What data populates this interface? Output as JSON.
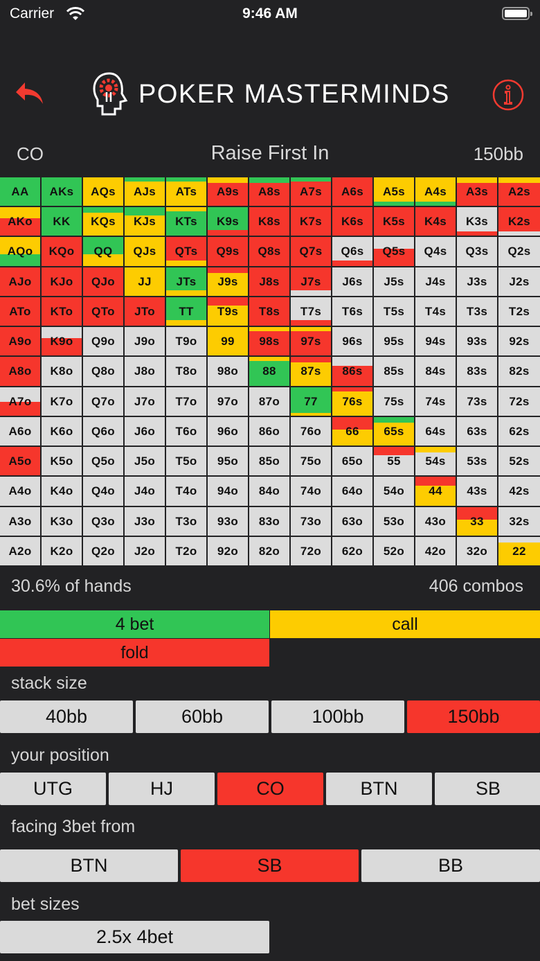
{
  "status": {
    "carrier": "Carrier",
    "time": "9:46 AM"
  },
  "header": {
    "title": "POKER MASTERMINDS"
  },
  "subheader": {
    "position": "CO",
    "title": "Raise First In",
    "stack": "150bb"
  },
  "colors": {
    "green": "#31c555",
    "yellow": "#fdcc01",
    "red": "#f6362c",
    "gray": "#dcdcdc"
  },
  "grid": {
    "rows": [
      [
        "AA",
        "AKs",
        "AQs",
        "AJs",
        "ATs",
        "A9s",
        "A8s",
        "A7s",
        "A6s",
        "A5s",
        "A4s",
        "A3s",
        "A2s"
      ],
      [
        "AKo",
        "KK",
        "KQs",
        "KJs",
        "KTs",
        "K9s",
        "K8s",
        "K7s",
        "K6s",
        "K5s",
        "K4s",
        "K3s",
        "K2s"
      ],
      [
        "AQo",
        "KQo",
        "QQ",
        "QJs",
        "QTs",
        "Q9s",
        "Q8s",
        "Q7s",
        "Q6s",
        "Q5s",
        "Q4s",
        "Q3s",
        "Q2s"
      ],
      [
        "AJo",
        "KJo",
        "QJo",
        "JJ",
        "JTs",
        "J9s",
        "J8s",
        "J7s",
        "J6s",
        "J5s",
        "J4s",
        "J3s",
        "J2s"
      ],
      [
        "ATo",
        "KTo",
        "QTo",
        "JTo",
        "TT",
        "T9s",
        "T8s",
        "T7s",
        "T6s",
        "T5s",
        "T4s",
        "T3s",
        "T2s"
      ],
      [
        "A9o",
        "K9o",
        "Q9o",
        "J9o",
        "T9o",
        "99",
        "98s",
        "97s",
        "96s",
        "95s",
        "94s",
        "93s",
        "92s"
      ],
      [
        "A8o",
        "K8o",
        "Q8o",
        "J8o",
        "T8o",
        "98o",
        "88",
        "87s",
        "86s",
        "85s",
        "84s",
        "83s",
        "82s"
      ],
      [
        "A7o",
        "K7o",
        "Q7o",
        "J7o",
        "T7o",
        "97o",
        "87o",
        "77",
        "76s",
        "75s",
        "74s",
        "73s",
        "72s"
      ],
      [
        "A6o",
        "K6o",
        "Q6o",
        "J6o",
        "T6o",
        "96o",
        "86o",
        "76o",
        "66",
        "65s",
        "64s",
        "63s",
        "62s"
      ],
      [
        "A5o",
        "K5o",
        "Q5o",
        "J5o",
        "T5o",
        "95o",
        "85o",
        "75o",
        "65o",
        "55",
        "54s",
        "53s",
        "52s"
      ],
      [
        "A4o",
        "K4o",
        "Q4o",
        "J4o",
        "T4o",
        "94o",
        "84o",
        "74o",
        "64o",
        "54o",
        "44",
        "43s",
        "42s"
      ],
      [
        "A3o",
        "K3o",
        "Q3o",
        "J3o",
        "T3o",
        "93o",
        "83o",
        "73o",
        "63o",
        "53o",
        "43o",
        "33",
        "32s"
      ],
      [
        "A2o",
        "K2o",
        "Q2o",
        "J2o",
        "T2o",
        "92o",
        "82o",
        "72o",
        "62o",
        "52o",
        "42o",
        "32o",
        "22"
      ]
    ],
    "mix": [
      [
        "g",
        "g",
        "y",
        "y.15g",
        "y.15g",
        "r.2y",
        "r.2g",
        "r.15g",
        "r",
        "g.85y",
        "g.85y",
        "r.2y",
        "r.2y"
      ],
      [
        "r.4y",
        "g",
        "y.2g",
        "y.3g",
        "g.15y",
        "r.8g",
        "r",
        "r",
        "r",
        "r",
        "r",
        "r.85x",
        "x.85r"
      ],
      [
        "g.6y",
        "r",
        "y.6g",
        "y",
        "y.8r",
        "r",
        "r",
        "r",
        "r.8x",
        "r.4x",
        "x",
        "x",
        "x"
      ],
      [
        "r",
        "r",
        "r",
        "y",
        "y.8g",
        "y.2r",
        "r",
        "x.8r",
        "x",
        "x",
        "x",
        "x",
        "x"
      ],
      [
        "r",
        "r",
        "r",
        "r",
        "y.8g",
        "y.3r",
        "r",
        "r.8x",
        "x",
        "x",
        "x",
        "x",
        "x"
      ],
      [
        "r",
        "r.4x",
        "x",
        "x",
        "x",
        "y",
        "r.15y",
        "r.15y",
        "x",
        "x",
        "x",
        "x",
        "x"
      ],
      [
        "r",
        "x",
        "x",
        "x",
        "x",
        "x",
        "g.15y",
        "y.2r",
        "r.3x",
        "x",
        "x",
        "x",
        "x"
      ],
      [
        "r.5x",
        "x",
        "x",
        "x",
        "x",
        "x",
        "x",
        "y.9g",
        "y.15r",
        "x",
        "x",
        "x",
        "x"
      ],
      [
        "x",
        "x",
        "x",
        "x",
        "x",
        "x",
        "x",
        "x",
        "y.45r",
        "y.2g",
        "x",
        "x",
        "x"
      ],
      [
        "r",
        "x",
        "x",
        "x",
        "x",
        "x",
        "x",
        "x",
        "x",
        "x.3r",
        "x.2y",
        "x",
        "x"
      ],
      [
        "x",
        "x",
        "x",
        "x",
        "x",
        "x",
        "x",
        "x",
        "x",
        "x",
        "y.3r",
        "x",
        "x"
      ],
      [
        "x",
        "x",
        "x",
        "x",
        "x",
        "x",
        "x",
        "x",
        "x",
        "x",
        "x",
        "y.45r",
        "x"
      ],
      [
        "x",
        "x",
        "x",
        "x",
        "x",
        "x",
        "x",
        "x",
        "x",
        "x",
        "x",
        "x",
        "y.2x"
      ]
    ]
  },
  "stats": {
    "hands": "30.6% of hands",
    "combos": "406 combos"
  },
  "legend": {
    "green": "4 bet",
    "yellow": "call",
    "red": "fold"
  },
  "stack_size": {
    "label": "stack size",
    "options": [
      "40bb",
      "60bb",
      "100bb",
      "150bb"
    ],
    "selected": 3
  },
  "position": {
    "label": "your position",
    "options": [
      "UTG",
      "HJ",
      "CO",
      "BTN",
      "SB"
    ],
    "selected": 2
  },
  "facing": {
    "label": "facing 3bet from",
    "options": [
      "BTN",
      "SB",
      "BB"
    ],
    "selected": 1
  },
  "bet_sizes": {
    "label": "bet sizes",
    "options": [
      "2.5x 4bet"
    ],
    "selected": -1
  }
}
